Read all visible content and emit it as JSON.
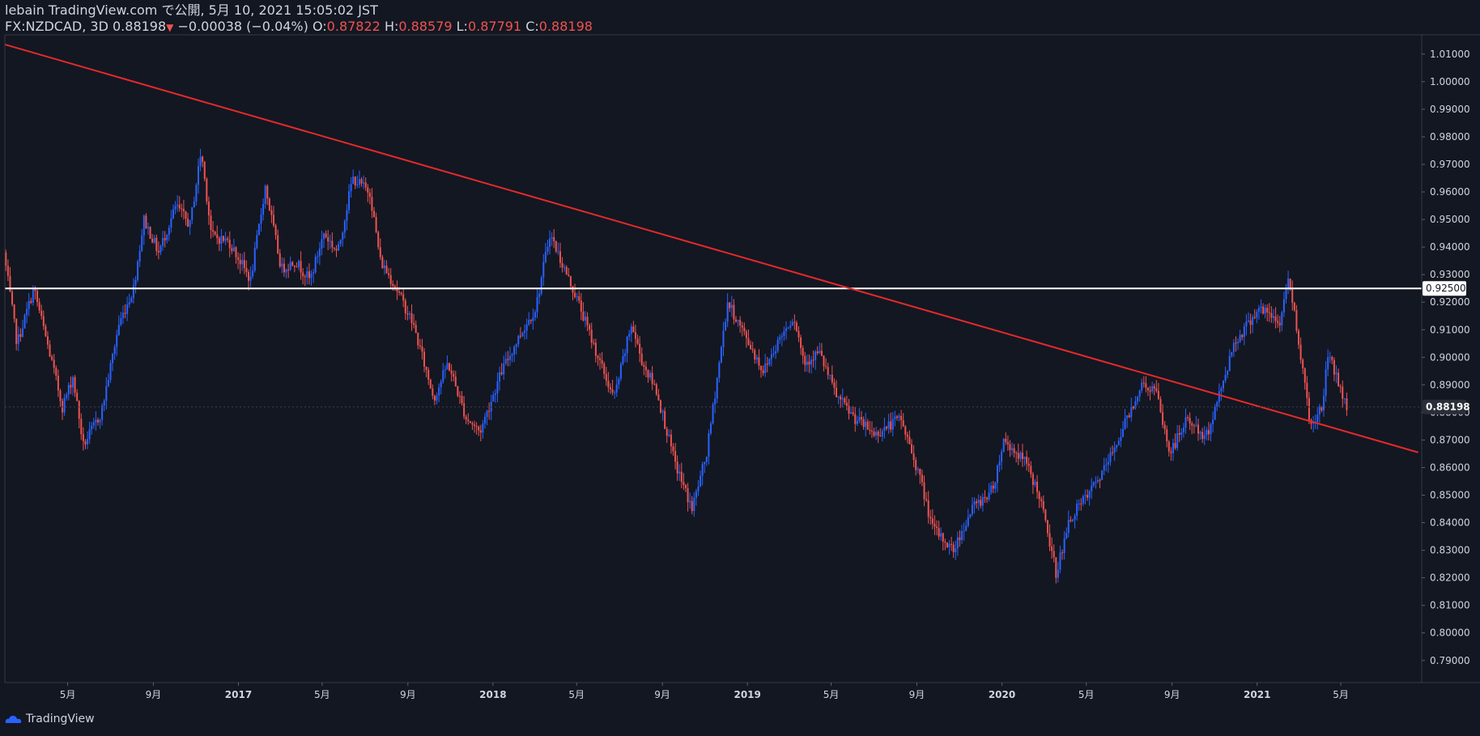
{
  "header": {
    "line1": "lebain TradingView.com で公開, 5月 10, 2021 15:05:02 JST",
    "symbol": "FX:NZDCAD, 3D 0.88198",
    "change": "−0.00038 (−0.04%)",
    "o_label": "O:",
    "o_value": "0.87822",
    "h_label": "H:",
    "h_value": "0.88579",
    "l_label": "L:",
    "l_value": "0.87791",
    "c_label": "C:",
    "c_value": "0.88198"
  },
  "logo_text": "TradingView",
  "colors": {
    "background": "#131722",
    "up": "#2962ff",
    "down": "#ef5350",
    "trendline": "#e52a2a",
    "level": "#ffffff",
    "axis_text": "#d1d4dc"
  },
  "chart_data": {
    "type": "candlestick",
    "symbol": "FX:NZDCAD",
    "interval": "3D",
    "ylim": [
      0.782,
      1.017
    ],
    "y_ticks": [
      "1.01000",
      "1.00000",
      "0.99000",
      "0.98000",
      "0.97000",
      "0.96000",
      "0.95000",
      "0.94000",
      "0.93000",
      "0.92000",
      "0.91000",
      "0.90000",
      "0.89000",
      "0.88000",
      "0.87000",
      "0.86000",
      "0.85000",
      "0.84000",
      "0.83000",
      "0.82000",
      "0.81000",
      "0.80000",
      "0.79000"
    ],
    "x_ticks": [
      {
        "date": "2016-05-01",
        "label": "5月"
      },
      {
        "date": "2016-09-01",
        "label": "9月"
      },
      {
        "date": "2017-01-01",
        "label": "2017"
      },
      {
        "date": "2017-05-01",
        "label": "5月"
      },
      {
        "date": "2017-09-01",
        "label": "9月"
      },
      {
        "date": "2018-01-01",
        "label": "2018"
      },
      {
        "date": "2018-05-01",
        "label": "5月"
      },
      {
        "date": "2018-09-01",
        "label": "9月"
      },
      {
        "date": "2019-01-01",
        "label": "2019"
      },
      {
        "date": "2019-05-01",
        "label": "5月"
      },
      {
        "date": "2019-09-01",
        "label": "9月"
      },
      {
        "date": "2020-01-01",
        "label": "2020"
      },
      {
        "date": "2020-05-01",
        "label": "5月"
      },
      {
        "date": "2020-09-01",
        "label": "9月"
      },
      {
        "date": "2021-01-01",
        "label": "2021"
      },
      {
        "date": "2021-05-01",
        "label": "5月"
      }
    ],
    "price_path": [
      [
        "2016-02-01",
        0.938
      ],
      [
        "2016-02-20",
        0.905
      ],
      [
        "2016-03-15",
        0.925
      ],
      [
        "2016-04-10",
        0.898
      ],
      [
        "2016-04-25",
        0.882
      ],
      [
        "2016-05-10",
        0.893
      ],
      [
        "2016-05-25",
        0.868
      ],
      [
        "2016-06-20",
        0.88
      ],
      [
        "2016-07-15",
        0.912
      ],
      [
        "2016-08-05",
        0.925
      ],
      [
        "2016-08-20",
        0.95
      ],
      [
        "2016-09-10",
        0.938
      ],
      [
        "2016-10-05",
        0.955
      ],
      [
        "2016-10-25",
        0.948
      ],
      [
        "2016-11-10",
        0.975
      ],
      [
        "2016-11-25",
        0.944
      ],
      [
        "2016-12-20",
        0.942
      ],
      [
        "2017-01-20",
        0.928
      ],
      [
        "2017-02-10",
        0.962
      ],
      [
        "2017-03-05",
        0.932
      ],
      [
        "2017-03-25",
        0.935
      ],
      [
        "2017-04-15",
        0.928
      ],
      [
        "2017-05-05",
        0.945
      ],
      [
        "2017-05-25",
        0.938
      ],
      [
        "2017-06-15",
        0.965
      ],
      [
        "2017-07-10",
        0.96
      ],
      [
        "2017-07-25",
        0.935
      ],
      [
        "2017-08-15",
        0.926
      ],
      [
        "2017-09-10",
        0.912
      ],
      [
        "2017-10-10",
        0.885
      ],
      [
        "2017-10-30",
        0.898
      ],
      [
        "2017-11-25",
        0.878
      ],
      [
        "2017-12-15",
        0.873
      ],
      [
        "2018-01-15",
        0.895
      ],
      [
        "2018-02-10",
        0.908
      ],
      [
        "2018-03-05",
        0.918
      ],
      [
        "2018-03-25",
        0.945
      ],
      [
        "2018-04-15",
        0.932
      ],
      [
        "2018-05-05",
        0.92
      ],
      [
        "2018-06-05",
        0.898
      ],
      [
        "2018-06-25",
        0.885
      ],
      [
        "2018-07-20",
        0.912
      ],
      [
        "2018-08-05",
        0.898
      ],
      [
        "2018-08-25",
        0.888
      ],
      [
        "2018-09-20",
        0.862
      ],
      [
        "2018-10-15",
        0.845
      ],
      [
        "2018-11-05",
        0.865
      ],
      [
        "2018-12-05",
        0.92
      ],
      [
        "2019-01-05",
        0.905
      ],
      [
        "2019-01-25",
        0.895
      ],
      [
        "2019-02-20",
        0.908
      ],
      [
        "2019-03-10",
        0.915
      ],
      [
        "2019-03-25",
        0.898
      ],
      [
        "2019-04-15",
        0.902
      ],
      [
        "2019-05-10",
        0.886
      ],
      [
        "2019-06-05",
        0.878
      ],
      [
        "2019-07-05",
        0.872
      ],
      [
        "2019-08-10",
        0.878
      ],
      [
        "2019-09-05",
        0.858
      ],
      [
        "2019-09-25",
        0.838
      ],
      [
        "2019-10-25",
        0.83
      ],
      [
        "2019-11-20",
        0.845
      ],
      [
        "2019-12-20",
        0.852
      ],
      [
        "2020-01-05",
        0.87
      ],
      [
        "2020-02-05",
        0.862
      ],
      [
        "2020-02-25",
        0.85
      ],
      [
        "2020-03-20",
        0.822
      ],
      [
        "2020-04-10",
        0.842
      ],
      [
        "2020-05-05",
        0.85
      ],
      [
        "2020-05-30",
        0.86
      ],
      [
        "2020-06-20",
        0.872
      ],
      [
        "2020-07-20",
        0.89
      ],
      [
        "2020-08-10",
        0.888
      ],
      [
        "2020-08-30",
        0.865
      ],
      [
        "2020-09-25",
        0.878
      ],
      [
        "2020-10-20",
        0.87
      ],
      [
        "2020-11-10",
        0.887
      ],
      [
        "2020-11-30",
        0.905
      ],
      [
        "2021-01-05",
        0.918
      ],
      [
        "2021-02-05",
        0.912
      ],
      [
        "2021-02-15",
        0.93
      ],
      [
        "2021-03-01",
        0.91
      ],
      [
        "2021-03-20",
        0.875
      ],
      [
        "2021-04-05",
        0.882
      ],
      [
        "2021-04-15",
        0.902
      ],
      [
        "2021-05-10",
        0.882
      ]
    ],
    "horizontal_levels": [
      {
        "value": 0.925,
        "label": "0.92500"
      }
    ],
    "last_price": {
      "value": 0.88198,
      "label": "0.88198"
    },
    "trendlines": [
      {
        "from": [
          "2016-02-01",
          1.0135
        ],
        "to": [
          "2021-08-20",
          0.8655
        ]
      }
    ]
  }
}
